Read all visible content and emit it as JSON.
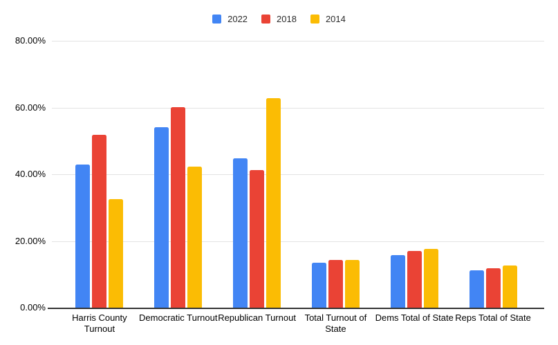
{
  "chart_data": {
    "type": "bar",
    "title": "",
    "xlabel": "",
    "ylabel": "",
    "categories": [
      "Harris County Turnout",
      "Democratic Turnout",
      "Republican Turnout",
      "Total Turnout of State",
      "Dems Total of State",
      "Reps Total of State"
    ],
    "series": [
      {
        "name": "2022",
        "color": "#4285F4",
        "values": [
          43.0,
          54.0,
          44.7,
          13.5,
          15.7,
          11.2
        ]
      },
      {
        "name": "2018",
        "color": "#EA4335",
        "values": [
          51.8,
          60.2,
          41.2,
          14.4,
          17.1,
          11.8
        ]
      },
      {
        "name": "2014",
        "color": "#FBBC04",
        "values": [
          32.5,
          42.2,
          62.7,
          14.4,
          17.6,
          12.7
        ]
      }
    ],
    "y_axis": {
      "max": 80,
      "ticks": [
        {
          "value": 0,
          "label": "0.00%"
        },
        {
          "value": 20,
          "label": "20.00%"
        },
        {
          "value": 40,
          "label": "40.00%"
        },
        {
          "value": 60,
          "label": "60.00%"
        },
        {
          "value": 80,
          "label": "80.00%"
        }
      ]
    },
    "grid": true,
    "legend_position": "top",
    "colors": {
      "gridline": "#e3e3e3",
      "axis_baseline": "#333333",
      "label_text": "#000000",
      "background": "#ffffff"
    }
  }
}
